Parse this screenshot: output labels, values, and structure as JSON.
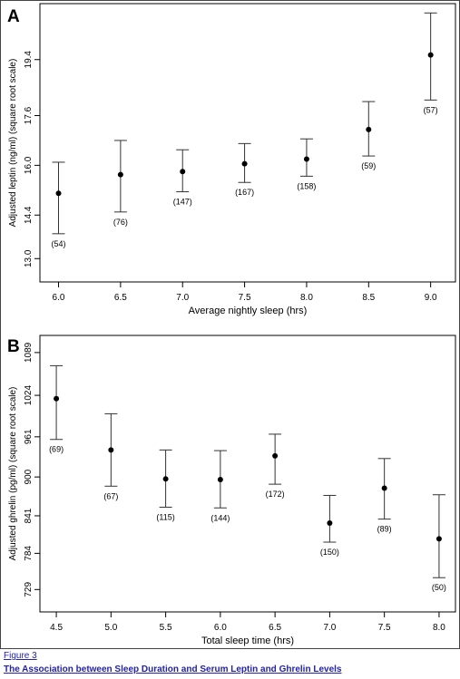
{
  "chart_data": [
    {
      "panel": "A",
      "type": "scatter",
      "xlabel": "Average nightly sleep (hrs)",
      "ylabel": "Adjusted leptin (ng/ml) (square root scale)",
      "x_ticks": [
        "6.0",
        "6.5",
        "7.0",
        "7.5",
        "8.0",
        "8.5",
        "9.0"
      ],
      "y_ticks": [
        "13.0",
        "14.4",
        "16.0",
        "17.6",
        "19.4"
      ],
      "xlim": [
        5.85,
        9.2
      ],
      "ylim": [
        12.25,
        21.2
      ],
      "points": [
        {
          "x": 6.0,
          "y": 15.1,
          "lo": 13.8,
          "hi": 16.1,
          "n": "(54)"
        },
        {
          "x": 6.5,
          "y": 15.7,
          "lo": 14.5,
          "hi": 16.8,
          "n": "(76)"
        },
        {
          "x": 7.0,
          "y": 15.8,
          "lo": 15.15,
          "hi": 16.5,
          "n": "(147)"
        },
        {
          "x": 7.5,
          "y": 16.05,
          "lo": 15.45,
          "hi": 16.7,
          "n": "(167)"
        },
        {
          "x": 8.0,
          "y": 16.2,
          "lo": 15.65,
          "hi": 16.85,
          "n": "(158)"
        },
        {
          "x": 8.5,
          "y": 17.15,
          "lo": 16.3,
          "hi": 18.05,
          "n": "(59)"
        },
        {
          "x": 9.0,
          "y": 19.55,
          "lo": 18.1,
          "hi": 20.9,
          "n": "(57)"
        }
      ]
    },
    {
      "panel": "B",
      "type": "scatter",
      "xlabel": "Total sleep time (hrs)",
      "ylabel": "Adjusted ghrelin (pg/ml) (square root scale)",
      "x_ticks": [
        "4.5",
        "5.0",
        "5.5",
        "6.0",
        "6.5",
        "7.0",
        "7.5",
        "8.0"
      ],
      "y_ticks": [
        "729",
        "784",
        "841",
        "900",
        "961",
        "1024",
        "1089"
      ],
      "xlim": [
        4.35,
        8.15
      ],
      "ylim": [
        695,
        1115
      ],
      "points": [
        {
          "x": 4.5,
          "y": 1019,
          "lo": 957,
          "hi": 1069,
          "n": "(69)"
        },
        {
          "x": 5.0,
          "y": 941,
          "lo": 886,
          "hi": 996,
          "n": "(67)"
        },
        {
          "x": 5.5,
          "y": 897,
          "lo": 854,
          "hi": 941,
          "n": "(115)"
        },
        {
          "x": 6.0,
          "y": 896,
          "lo": 853,
          "hi": 940,
          "n": "(144)"
        },
        {
          "x": 6.5,
          "y": 932,
          "lo": 889,
          "hi": 965,
          "n": "(172)"
        },
        {
          "x": 7.0,
          "y": 830,
          "lo": 801,
          "hi": 872,
          "n": "(150)"
        },
        {
          "x": 7.5,
          "y": 883,
          "lo": 836,
          "hi": 928,
          "n": "(89)"
        },
        {
          "x": 8.0,
          "y": 806,
          "lo": 747,
          "hi": 873,
          "n": "(50)"
        }
      ]
    }
  ],
  "caption": {
    "figure": "Figure 3",
    "title": "The Association between Sleep Duration and Serum Leptin and Ghrelin Levels"
  }
}
